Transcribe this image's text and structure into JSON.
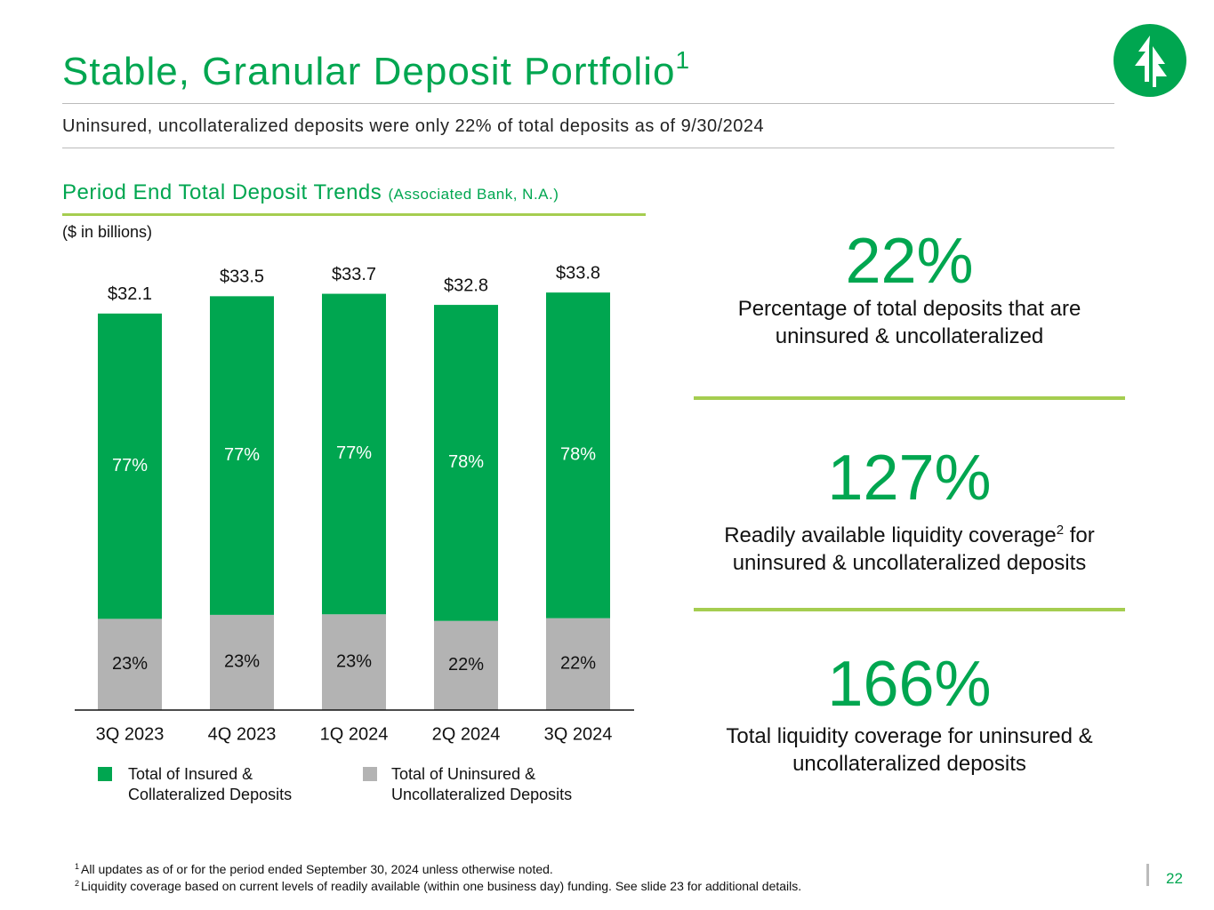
{
  "header": {
    "title": "Stable, Granular Deposit Portfolio",
    "title_note": "1",
    "subtitle": "Uninsured, uncollateralized deposits were only 22% of total deposits as of 9/30/2024"
  },
  "chart_data": {
    "type": "bar",
    "stacked": true,
    "title": "Period End Total Deposit Trends",
    "title_note": "(Associated Bank, N.A.)",
    "unit_note": "($ in billions)",
    "categories": [
      "3Q 2023",
      "4Q 2023",
      "1Q 2024",
      "2Q 2024",
      "3Q 2024"
    ],
    "totals": {
      "values": [
        32.1,
        33.5,
        33.7,
        32.8,
        33.8
      ],
      "value_labels": [
        "$32.1",
        "$33.5",
        "$33.7",
        "$32.8",
        "$33.8"
      ]
    },
    "series": [
      {
        "name": "Total of Uninsured & Uncollateralized Deposits",
        "color": "#b3b3b3",
        "values": [
          23,
          23,
          23,
          22,
          22
        ],
        "value_labels": [
          "23%",
          "23%",
          "23%",
          "22%",
          "22%"
        ]
      },
      {
        "name": "Total of Insured & Collateralized Deposits",
        "color": "#00a650",
        "values": [
          77,
          77,
          77,
          78,
          78
        ],
        "value_labels": [
          "77%",
          "77%",
          "77%",
          "78%",
          "78%"
        ]
      }
    ]
  },
  "stats": [
    {
      "value": "22%",
      "text": "Percentage of total deposits that are uninsured & uncollateralized"
    },
    {
      "value": "127%",
      "text": "Readily available liquidity coverage",
      "note": "2",
      "text_after": " for uninsured & uncollateralized deposits"
    },
    {
      "value": "166%",
      "text": "Total liquidity coverage for uninsured & uncollateralized deposits"
    }
  ],
  "footnotes": [
    {
      "marker": "1",
      "text": "All updates as of or for the period ended September 30, 2024 unless otherwise noted."
    },
    {
      "marker": "2",
      "text": "Liquidity coverage based on current levels of readily available (within one business day) funding. See slide 23 for additional details."
    }
  ],
  "page_number": "22"
}
